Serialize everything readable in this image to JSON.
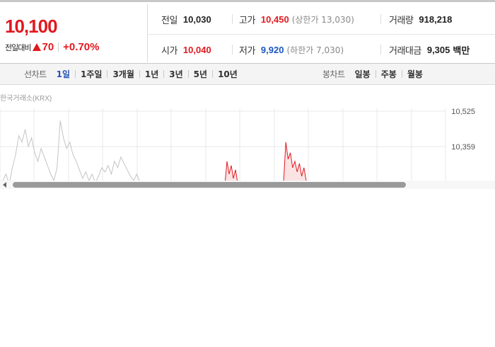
{
  "quote": {
    "price": "10,100",
    "change_label": "전일대비",
    "change_value": "70",
    "change_pct": "+0.70%",
    "prev_close_label": "전일",
    "prev_close": "10,030",
    "high_label": "고가",
    "high": "10,450",
    "upper_limit": "(상한가 13,030)",
    "volume_label": "거래량",
    "volume": "918,218",
    "open_label": "시가",
    "open": "10,040",
    "low_label": "저가",
    "low": "9,920",
    "lower_limit": "(하한가 7,030)",
    "trade_value_label": "거래대금",
    "trade_value": "9,305",
    "trade_value_unit": "백만"
  },
  "period_bar": {
    "line_chart_title": "선차트",
    "line_tabs": [
      "1일",
      "1주일",
      "3개월",
      "1년",
      "3년",
      "5년",
      "10년"
    ],
    "active_tab": "1일",
    "candle_chart_title": "봉차트",
    "candle_tabs": [
      "일봉",
      "주봉",
      "월봉"
    ]
  },
  "chart": {
    "source_label": "한국거래소(KRX)",
    "y_ticks": [
      "10,525",
      "10,359"
    ],
    "colors": {
      "up": "#e1191f",
      "prev": "#c4c4c4",
      "grid": "#e9e9e9"
    }
  },
  "chart_data": {
    "type": "line",
    "y_tick_values": [
      10525,
      10359
    ],
    "series": [
      {
        "values": [
          10200,
          10230,
          10180,
          10260,
          10320,
          10410,
          10380,
          10440,
          10360,
          10400,
          10330,
          10290,
          10350,
          10310,
          10270,
          10230,
          10200,
          10260,
          10480,
          10400,
          10350,
          10380,
          10320,
          10290,
          10250,
          10210,
          10240,
          10200,
          10230,
          10190,
          10220,
          10260,
          10240,
          10270,
          10230,
          10290,
          10260,
          10310,
          10280,
          10250,
          10220,
          10200,
          10230,
          10190
        ]
      },
      {
        "values": [
          10180,
          10290,
          10230,
          10270,
          10210,
          10250,
          10190
        ]
      },
      {
        "values": [
          10190,
          10380,
          10300,
          10330,
          10260,
          10290,
          10240,
          10280,
          10220,
          10260,
          10200
        ]
      }
    ]
  }
}
